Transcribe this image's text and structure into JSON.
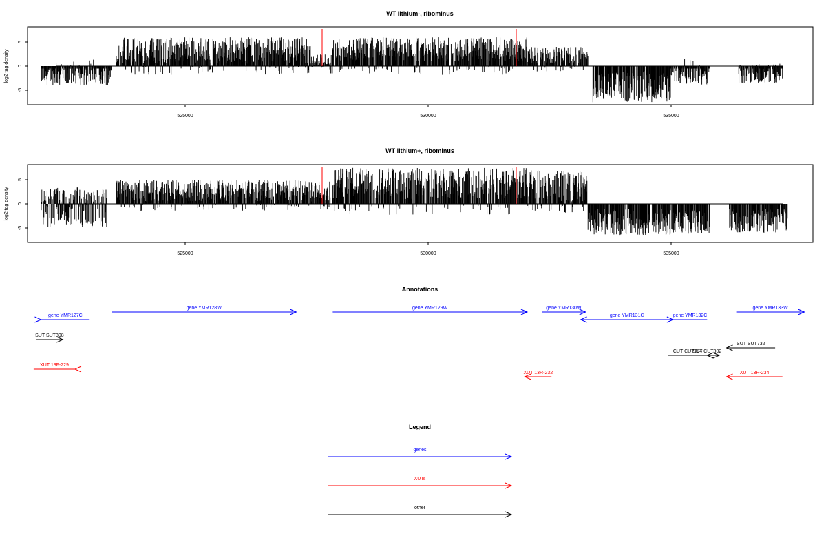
{
  "panels": [
    {
      "title": "WT lithium-, ribominus",
      "ylabel": "log2 tag density",
      "yticks": [
        "5",
        "0",
        "-5"
      ],
      "xticks": [
        "525000",
        "530000",
        "535000"
      ]
    },
    {
      "title": "WT lithium+, ribominus",
      "ylabel": "log2 tag density",
      "yticks": [
        "5",
        "0",
        "-5"
      ],
      "xticks": [
        "525000",
        "530000",
        "535000"
      ]
    }
  ],
  "annotations_title": "Annotations",
  "legend_title": "Legend",
  "colors": {
    "genes": "#0000ff",
    "XUTs": "#ff0000",
    "other": "#000000",
    "marker": "#ff0000",
    "signal": "#000000"
  },
  "chart_data": [
    {
      "type": "bar",
      "title": "WT lithium-, ribominus",
      "xlabel": "",
      "ylabel": "log2 tag density",
      "xlim": [
        521800,
        537500
      ],
      "ylim": [
        -8,
        8
      ],
      "grid": false,
      "marker_lines_x": [
        527850,
        531850
      ],
      "regions": [
        {
          "from": 521850,
          "to": 522700,
          "min": -4,
          "max": 1,
          "sign": "neg"
        },
        {
          "from": 522700,
          "to": 523300,
          "min": -4,
          "max": 1.5,
          "sign": "neg"
        },
        {
          "from": 523400,
          "to": 527400,
          "min": 0.5,
          "max": 6,
          "sign": "pos"
        },
        {
          "from": 527400,
          "to": 527850,
          "min": -1.5,
          "max": 2.5,
          "sign": "pos"
        },
        {
          "from": 527850,
          "to": 531850,
          "min": 1,
          "max": 6,
          "sign": "pos"
        },
        {
          "from": 531850,
          "to": 533100,
          "min": 0.5,
          "max": 4,
          "sign": "pos"
        },
        {
          "from": 533200,
          "to": 534800,
          "min": -7.5,
          "max": -1,
          "sign": "neg"
        },
        {
          "from": 534800,
          "to": 535600,
          "min": -4,
          "max": 2,
          "sign": "neg"
        },
        {
          "from": 536200,
          "to": 537100,
          "min": -3.5,
          "max": 0.5,
          "sign": "neg"
        }
      ]
    },
    {
      "type": "bar",
      "title": "WT lithium+, ribominus",
      "xlabel": "",
      "ylabel": "log2 tag density",
      "xlim": [
        521800,
        537500
      ],
      "ylim": [
        -8,
        8
      ],
      "grid": false,
      "marker_lines_x": [
        527850,
        531850
      ],
      "regions": [
        {
          "from": 521850,
          "to": 523200,
          "min": -5,
          "max": 3.5,
          "sign": "both"
        },
        {
          "from": 523400,
          "to": 527800,
          "min": 0.5,
          "max": 5,
          "sign": "pos"
        },
        {
          "from": 527850,
          "to": 531850,
          "min": 1,
          "max": 7.5,
          "sign": "pos"
        },
        {
          "from": 531850,
          "to": 533100,
          "min": 0.5,
          "max": 7,
          "sign": "pos"
        },
        {
          "from": 533100,
          "to": 535600,
          "min": -6.5,
          "max": -1,
          "sign": "neg"
        },
        {
          "from": 536000,
          "to": 537200,
          "min": -6,
          "max": -1,
          "sign": "neg"
        }
      ]
    }
  ],
  "features": [
    {
      "label": "gene YMR127C",
      "type": "genes",
      "start": 522850,
      "end": 521850,
      "row": 1
    },
    {
      "label": "gene YMR128W",
      "type": "genes",
      "start": 523300,
      "end": 527100,
      "row": 0
    },
    {
      "label": "gene YMR129W",
      "type": "genes",
      "start": 527850,
      "end": 531850,
      "row": 0
    },
    {
      "label": "gene YMR130W",
      "type": "genes",
      "start": 532150,
      "end": 533050,
      "row": 0
    },
    {
      "label": "gene YMR131C",
      "type": "genes",
      "start": 534850,
      "end": 532950,
      "row": 1
    },
    {
      "label": "gene YMR132C",
      "type": "genes",
      "start": 535550,
      "end": 534850,
      "row": 1
    },
    {
      "label": "gene YMR133W",
      "type": "genes",
      "start": 536150,
      "end": 537550,
      "row": 0
    },
    {
      "label": "SUT SUT308",
      "type": "other",
      "start": 521750,
      "end": 522300,
      "row": 3
    },
    {
      "label": "SUT SUT732",
      "type": "other",
      "start": 536950,
      "end": 535950,
      "row": 4
    },
    {
      "label": "CUT CUT584",
      "type": "other",
      "start": 534750,
      "end": 535550,
      "row": 5
    },
    {
      "label": "SUT CUT302",
      "type": "other",
      "start": 535300,
      "end": 535800,
      "row": 5
    },
    {
      "label": "XUT 13F-229",
      "type": "XUTs",
      "start": 521700,
      "end": 522550,
      "row": 6
    },
    {
      "label": "XUT 13R-232",
      "type": "XUTs",
      "start": 532350,
      "end": 531800,
      "row": 7
    },
    {
      "label": "XUT 13R-234",
      "type": "XUTs",
      "start": 537100,
      "end": 535950,
      "row": 7
    }
  ],
  "legend": [
    {
      "label": "genes",
      "type": "genes"
    },
    {
      "label": "XUTs",
      "type": "XUTs"
    },
    {
      "label": "other",
      "type": "other"
    }
  ]
}
